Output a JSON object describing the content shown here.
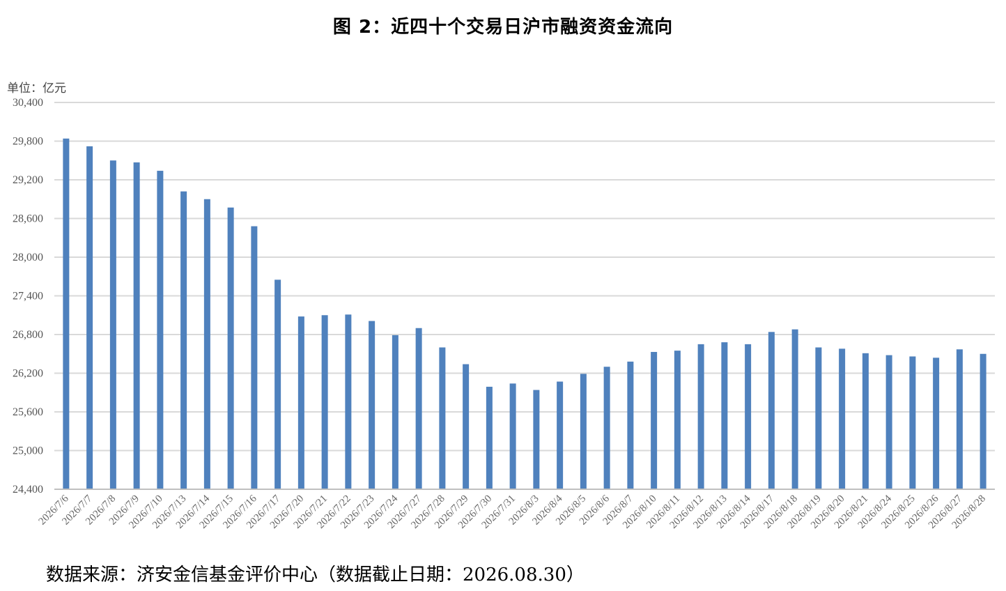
{
  "title": "图 2：近四十个交易日沪市融资资金流向",
  "unit": "单位：亿元",
  "source": "数据来源：济安金信基金评价中心（数据截止日期：2026.08.30）",
  "colors": {
    "bar": "#4f81bd",
    "grid": "#d9d9d9",
    "axis": "#bfbfbf"
  },
  "chart_data": {
    "type": "bar",
    "categories": [
      "2026/7/6",
      "2026/7/7",
      "2026/7/8",
      "2026/7/9",
      "2026/7/10",
      "2026/7/13",
      "2026/7/14",
      "2026/7/15",
      "2026/7/16",
      "2026/7/17",
      "2026/7/20",
      "2026/7/21",
      "2026/7/22",
      "2026/7/23",
      "2026/7/24",
      "2026/7/27",
      "2026/7/28",
      "2026/7/29",
      "2026/7/30",
      "2026/7/31",
      "2026/8/3",
      "2026/8/4",
      "2026/8/5",
      "2026/8/6",
      "2026/8/7",
      "2026/8/10",
      "2026/8/11",
      "2026/8/12",
      "2026/8/13",
      "2026/8/14",
      "2026/8/17",
      "2026/8/18",
      "2026/8/19",
      "2026/8/20",
      "2026/8/21",
      "2026/8/24",
      "2026/8/25",
      "2026/8/26",
      "2026/8/27",
      "2026/8/28"
    ],
    "values": [
      29840,
      29720,
      29500,
      29470,
      29340,
      29020,
      28900,
      28770,
      28480,
      27650,
      27080,
      27100,
      27110,
      27010,
      26790,
      26900,
      26600,
      26340,
      25990,
      26040,
      25940,
      26070,
      26190,
      26300,
      26380,
      26530,
      26550,
      26650,
      26680,
      26650,
      26840,
      26880,
      26600,
      26580,
      26510,
      26480,
      26460,
      26440,
      26570,
      26500
    ],
    "ylim": [
      24400,
      30400
    ],
    "yticks": [
      "24,400",
      "25,000",
      "25,600",
      "26,200",
      "26,800",
      "27,400",
      "28,000",
      "28,600",
      "29,200",
      "29,800",
      "30,400"
    ],
    "ytick_values": [
      24400,
      25000,
      25600,
      26200,
      26800,
      27400,
      28000,
      28600,
      29200,
      29800,
      30400
    ],
    "grid": true,
    "legend": "none"
  }
}
